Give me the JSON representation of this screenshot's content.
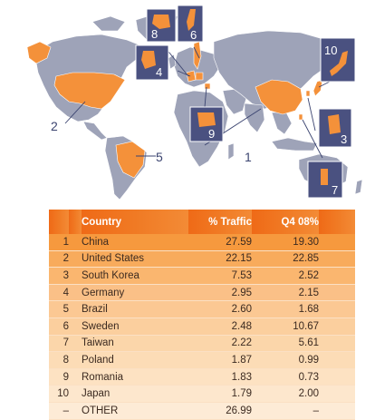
{
  "map": {
    "callouts": [
      {
        "number": "1"
      },
      {
        "number": "2"
      },
      {
        "number": "3"
      },
      {
        "number": "4"
      },
      {
        "number": "5"
      },
      {
        "number": "6"
      },
      {
        "number": "7"
      },
      {
        "number": "8"
      },
      {
        "number": "9"
      },
      {
        "number": "10"
      }
    ]
  },
  "table": {
    "headers": {
      "country": "Country",
      "traffic": "% Traffic",
      "q4": "Q4 08%"
    },
    "rows": [
      {
        "rank": "1",
        "country": "China",
        "traffic": "27.59",
        "q4": "19.30"
      },
      {
        "rank": "2",
        "country": "United States",
        "traffic": "22.15",
        "q4": "22.85"
      },
      {
        "rank": "3",
        "country": "South Korea",
        "traffic": "7.53",
        "q4": "2.52"
      },
      {
        "rank": "4",
        "country": "Germany",
        "traffic": "2.95",
        "q4": "2.15"
      },
      {
        "rank": "5",
        "country": "Brazil",
        "traffic": "2.60",
        "q4": "1.68"
      },
      {
        "rank": "6",
        "country": "Sweden",
        "traffic": "2.48",
        "q4": "10.67"
      },
      {
        "rank": "7",
        "country": "Taiwan",
        "traffic": "2.22",
        "q4": "5.61"
      },
      {
        "rank": "8",
        "country": "Poland",
        "traffic": "1.87",
        "q4": "0.99"
      },
      {
        "rank": "9",
        "country": "Romania",
        "traffic": "1.83",
        "q4": "0.73"
      },
      {
        "rank": "10",
        "country": "Japan",
        "traffic": "1.79",
        "q4": "2.00"
      },
      {
        "rank": "–",
        "country": "OTHER",
        "traffic": "26.99",
        "q4": "–"
      }
    ]
  },
  "colors": {
    "land": "#9ea3b8",
    "highlight": "#f4913a",
    "inset_box": "#4a5180",
    "ocean": "#ffffff",
    "header": "#ef6a17"
  }
}
